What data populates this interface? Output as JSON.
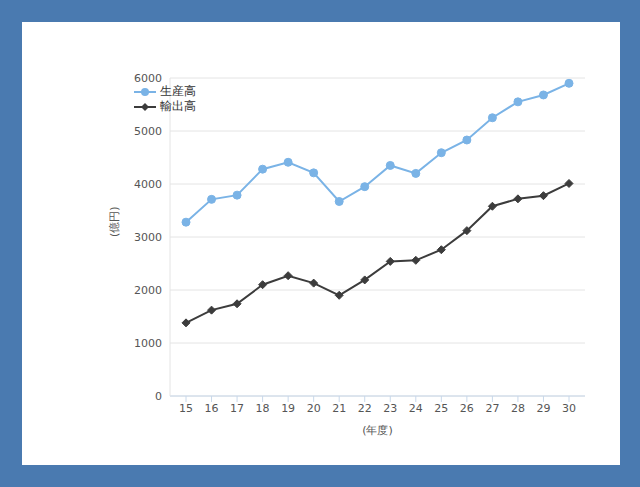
{
  "chart_data": {
    "type": "line",
    "x_label": "(年度)",
    "y_label": "(億円)",
    "categories": [
      "15",
      "16",
      "17",
      "18",
      "19",
      "20",
      "21",
      "22",
      "23",
      "24",
      "25",
      "26",
      "27",
      "28",
      "29",
      "30"
    ],
    "series": [
      {
        "name": "生産高",
        "color": "#7ab3e6",
        "marker": "circle",
        "values": [
          3280,
          3710,
          3790,
          4280,
          4410,
          4210,
          3670,
          3950,
          4350,
          4200,
          4590,
          4830,
          5250,
          5550,
          5680,
          5900
        ]
      },
      {
        "name": "輸出高",
        "color": "#3c3c3c",
        "marker": "diamond",
        "values": [
          1380,
          1620,
          1740,
          2100,
          2270,
          2130,
          1900,
          2190,
          2540,
          2560,
          2760,
          3120,
          3580,
          3720,
          3780,
          4010
        ]
      }
    ],
    "ylim": [
      0,
      6000
    ],
    "yticks": [
      0,
      1000,
      2000,
      3000,
      4000,
      5000,
      6000
    ],
    "grid": true,
    "legend": "upper left"
  }
}
